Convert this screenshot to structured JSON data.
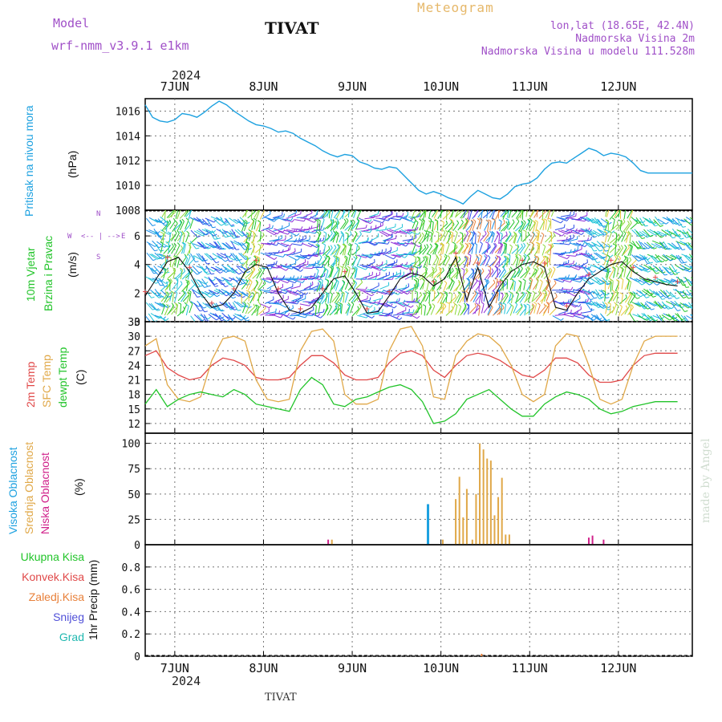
{
  "header": {
    "model_label": "Model",
    "model_name": "wrf-nmm_v3.9.1 e1km",
    "title": "TIVAT",
    "meteogram": "Meteogram",
    "lonlat": "lon,lat (18.65E, 42.4N)",
    "elevation": "Nadmorska Visina 2m",
    "model_elevation": "Nadmorska Visina u modelu 111.528m",
    "footer_title": "TIVAT",
    "watermark": "made by Angel",
    "year_top": "2024",
    "year_bottom": "2024"
  },
  "colors": {
    "pressure": "#1da1e0",
    "temp2m": "#e04848",
    "sfc": "#e0a848",
    "dewpt": "#22c42a",
    "high_cloud": "#1da1e0",
    "mid_cloud": "#e0a848",
    "low_cloud": "#d0208a",
    "wind_label": "#22c42a",
    "legend_purple": "#a050c8"
  },
  "chart_data": [
    {
      "type": "line",
      "panel": "pressure",
      "ylabel_colored": "Pritisak na nivou mora",
      "unit": "(hPa)",
      "xticks": [
        "7JUN",
        "8JUN",
        "9JUN",
        "10JUN",
        "11JUN",
        "12JUN"
      ],
      "ylim": [
        1008,
        1017
      ],
      "yticks": [
        "1008",
        "1010",
        "1012",
        "1014",
        "1016"
      ],
      "x": [
        0,
        2,
        4,
        6,
        8,
        10,
        12,
        14,
        16,
        18,
        20,
        22,
        24,
        26,
        28,
        30,
        32,
        34,
        36,
        38,
        40,
        42,
        44,
        46,
        48,
        50,
        52,
        54,
        56,
        58,
        60,
        62,
        64,
        66,
        68,
        70,
        72,
        74,
        76,
        78,
        80,
        82,
        84,
        86,
        88,
        90,
        92,
        94,
        96,
        98,
        100,
        102,
        104,
        106,
        108,
        110,
        112,
        114,
        116,
        118,
        120,
        122,
        124,
        126,
        128,
        130,
        132,
        134,
        136,
        138,
        140,
        142,
        144,
        146,
        148
      ],
      "series": [
        {
          "values": [
            1016.5,
            1015.5,
            1015.2,
            1015.1,
            1015.3,
            1015.8,
            1015.7,
            1015.5,
            1015.9,
            1016.4,
            1016.8,
            1016.5,
            1016.0,
            1015.6,
            1015.2,
            1014.9,
            1014.8,
            1014.6,
            1014.3,
            1014.4,
            1014.2,
            1013.8,
            1013.5,
            1013.2,
            1012.8,
            1012.5,
            1012.3,
            1012.5,
            1012.4,
            1011.9,
            1011.7,
            1011.4,
            1011.3,
            1011.5,
            1011.4,
            1010.8,
            1010.2,
            1009.6,
            1009.3,
            1009.5,
            1009.3,
            1009.0,
            1008.8,
            1008.5,
            1009.1,
            1009.6,
            1009.3,
            1009.0,
            1008.9,
            1009.3,
            1009.9,
            1010.1,
            1010.2,
            1010.6,
            1011.3,
            1011.8,
            1011.9,
            1011.8,
            1012.2,
            1012.6,
            1013.0,
            1012.8,
            1012.4,
            1012.6,
            1012.5,
            1012.3,
            1011.8,
            1011.2,
            1011.0,
            1011.0,
            1011.0,
            1011.0,
            1011.0,
            1011.0,
            1011.0
          ]
        }
      ]
    },
    {
      "type": "line",
      "panel": "wind",
      "ylabel_line1": "10m Vjetar",
      "ylabel_line2": "Brzina i Pravac",
      "unit": "(m/s)",
      "compass_w": "W",
      "compass_e": "E",
      "compass_row": "<-- | -->",
      "compass_n": "N",
      "compass_s": "S",
      "ylim": [
        0,
        7.8
      ],
      "yticks": [
        "0",
        "2",
        "4",
        "6"
      ],
      "x": [
        0,
        3,
        6,
        9,
        12,
        15,
        18,
        21,
        24,
        27,
        30,
        33,
        36,
        39,
        42,
        45,
        48,
        51,
        54,
        57,
        60,
        63,
        66,
        69,
        72,
        75,
        78,
        81,
        84,
        87,
        90,
        93,
        96,
        99,
        102,
        105,
        108,
        111,
        114,
        117,
        120,
        123,
        126,
        129,
        132,
        135,
        138,
        141,
        144
      ],
      "series": [
        {
          "values": [
            1.8,
            3.0,
            4.2,
            4.5,
            3.5,
            2.0,
            1.0,
            1.2,
            2.0,
            3.5,
            4.0,
            3.8,
            2.0,
            0.8,
            0.6,
            1.0,
            2.0,
            3.0,
            3.2,
            2.0,
            0.6,
            0.7,
            1.8,
            3.0,
            3.4,
            3.2,
            2.5,
            3.0,
            4.5,
            1.5,
            3.8,
            1.0,
            2.5,
            3.5,
            4.0,
            4.2,
            3.8,
            1.0,
            0.8,
            2.0,
            3.0,
            3.5,
            4.0,
            4.2,
            3.5,
            3.0,
            2.8,
            2.6,
            2.5
          ]
        }
      ]
    },
    {
      "type": "line",
      "panel": "temperature",
      "legend": [
        "2m Temp",
        "SFC Temp",
        "dewpt Temp"
      ],
      "unit": "(C)",
      "ylim": [
        10,
        33
      ],
      "yticks": [
        "12",
        "15",
        "18",
        "21",
        "24",
        "27",
        "30",
        "33"
      ],
      "x": [
        0,
        3,
        6,
        9,
        12,
        15,
        18,
        21,
        24,
        27,
        30,
        33,
        36,
        39,
        42,
        45,
        48,
        51,
        54,
        57,
        60,
        63,
        66,
        69,
        72,
        75,
        78,
        81,
        84,
        87,
        90,
        93,
        96,
        99,
        102,
        105,
        108,
        111,
        114,
        117,
        120,
        123,
        126,
        129,
        132,
        135,
        138,
        141,
        144
      ],
      "series": [
        {
          "name": "2m Temp",
          "values": [
            26,
            27,
            23.5,
            22,
            21,
            21.5,
            24,
            25.5,
            25,
            24,
            21.5,
            21,
            21,
            21.5,
            24,
            26,
            26,
            24.5,
            22,
            21,
            21,
            21.5,
            24.5,
            26.5,
            27,
            26,
            23,
            21.5,
            24,
            26,
            26.5,
            26,
            25,
            23.5,
            22,
            21.5,
            23,
            25.5,
            25.5,
            24.5,
            22,
            20.5,
            20.5,
            21,
            24,
            26,
            26.5,
            26.5,
            26.5
          ]
        },
        {
          "name": "SFC Temp",
          "values": [
            28,
            29.5,
            20,
            17,
            16.5,
            17.5,
            25,
            29.5,
            30,
            29,
            21,
            17,
            16.5,
            17,
            27,
            31,
            31.5,
            29,
            18,
            16,
            16,
            17,
            27,
            31.5,
            32,
            28,
            17.5,
            17,
            26,
            29,
            30.5,
            30,
            28,
            24,
            18,
            16.5,
            18,
            28,
            30.5,
            30,
            24,
            17,
            16,
            17,
            24,
            29,
            30,
            30,
            30
          ]
        },
        {
          "name": "dewpt Temp",
          "values": [
            16,
            19,
            15.5,
            17,
            18,
            18.5,
            18,
            17.5,
            19,
            18,
            16,
            15.5,
            15,
            14.5,
            19,
            21.5,
            20,
            16,
            15.5,
            17,
            17.5,
            18.5,
            19.5,
            20,
            19,
            16.5,
            12,
            12.5,
            14,
            17,
            18,
            19,
            17,
            15,
            13.5,
            13.5,
            16,
            17.5,
            18.5,
            18,
            17,
            15,
            14,
            14.5,
            15.5,
            16,
            16.5,
            16.5,
            16.5
          ]
        }
      ]
    },
    {
      "type": "bar",
      "panel": "clouds",
      "legend": [
        "Visoka Oblacnost",
        "Srednja Oblacnost",
        "Niska Oblacnost"
      ],
      "unit": "(%)",
      "ylim": [
        0,
        110
      ],
      "yticks": [
        "0",
        "25",
        "50",
        "75",
        "100"
      ],
      "bars": [
        {
          "series": "low",
          "x": 49.5,
          "value": 5
        },
        {
          "series": "mid",
          "x": 50.5,
          "value": 5
        },
        {
          "series": "high",
          "x": 76.5,
          "value": 40
        },
        {
          "series": "mid",
          "x": 80.5,
          "value": 5
        },
        {
          "series": "mid",
          "x": 84,
          "value": 45
        },
        {
          "series": "mid",
          "x": 85,
          "value": 67
        },
        {
          "series": "mid",
          "x": 86,
          "value": 27
        },
        {
          "series": "mid",
          "x": 87,
          "value": 55
        },
        {
          "series": "mid",
          "x": 88.5,
          "value": 5
        },
        {
          "series": "mid",
          "x": 89.5,
          "value": 50
        },
        {
          "series": "mid",
          "x": 90.5,
          "value": 100
        },
        {
          "series": "mid",
          "x": 91.5,
          "value": 94
        },
        {
          "series": "mid",
          "x": 92.5,
          "value": 85
        },
        {
          "series": "mid",
          "x": 93.5,
          "value": 83
        },
        {
          "series": "mid",
          "x": 94.5,
          "value": 29
        },
        {
          "series": "mid",
          "x": 95.5,
          "value": 47
        },
        {
          "series": "mid",
          "x": 96.5,
          "value": 66
        },
        {
          "series": "mid",
          "x": 97.5,
          "value": 10
        },
        {
          "series": "mid",
          "x": 98.5,
          "value": 10
        },
        {
          "series": "low",
          "x": 120,
          "value": 7
        },
        {
          "series": "low",
          "x": 121,
          "value": 9
        },
        {
          "series": "low",
          "x": 124,
          "value": 5
        }
      ]
    },
    {
      "type": "bar",
      "panel": "precip",
      "legend": [
        "Ukupna Kisa",
        "Konvek.Kisa",
        "Zaledj.Kisa",
        "Snijeg",
        "Grad"
      ],
      "unit": "1hr Precip (mm)",
      "ylim": [
        0,
        1
      ],
      "yticks": [
        "0",
        "0.2",
        "0.4",
        "0.6",
        "0.8"
      ],
      "xticks": [
        "7JUN",
        "8JUN",
        "9JUN",
        "10JUN",
        "11JUN",
        "12JUN"
      ],
      "bars": [
        {
          "series": "Zaledj.Kisa",
          "x": 91,
          "value": 0.01
        }
      ]
    }
  ]
}
